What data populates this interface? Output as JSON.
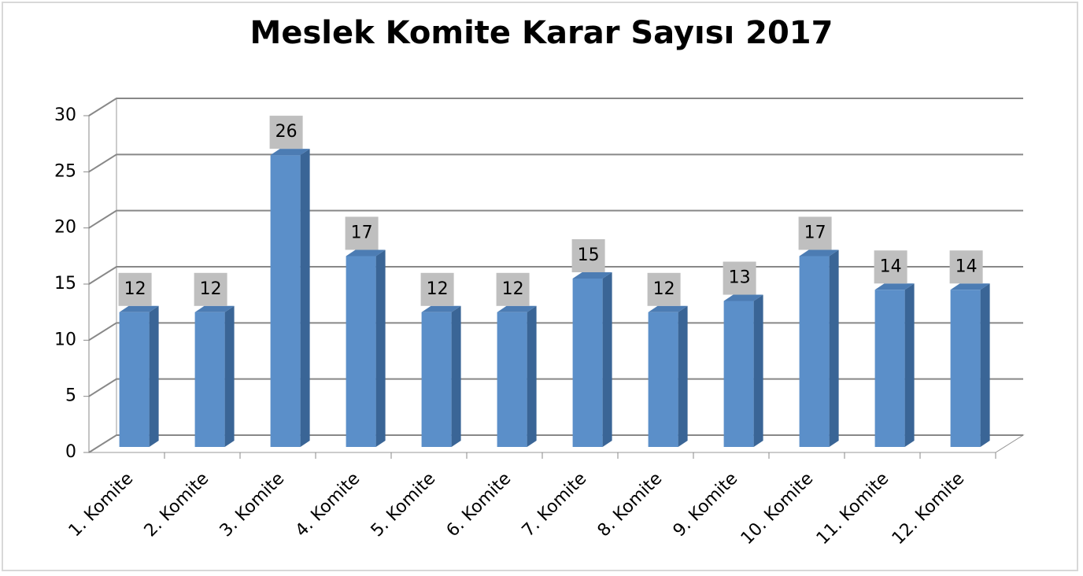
{
  "chart_data": {
    "type": "bar",
    "title": "Meslek Komite Karar Sayısı 2017",
    "categories": [
      "1. Komite",
      "2. Komite",
      "3. Komite",
      "4. Komite",
      "5. Komite",
      "6. Komite",
      "7. Komite",
      "8. Komite",
      "9. Komite",
      "10. Komite",
      "11. Komite",
      "12. Komite"
    ],
    "values": [
      12,
      12,
      26,
      17,
      12,
      12,
      15,
      12,
      13,
      17,
      14,
      14
    ],
    "color": "#5b8fc9",
    "ylim": [
      0,
      30
    ],
    "yticks": [
      0,
      5,
      10,
      15,
      20,
      25,
      30
    ],
    "grid": true
  }
}
